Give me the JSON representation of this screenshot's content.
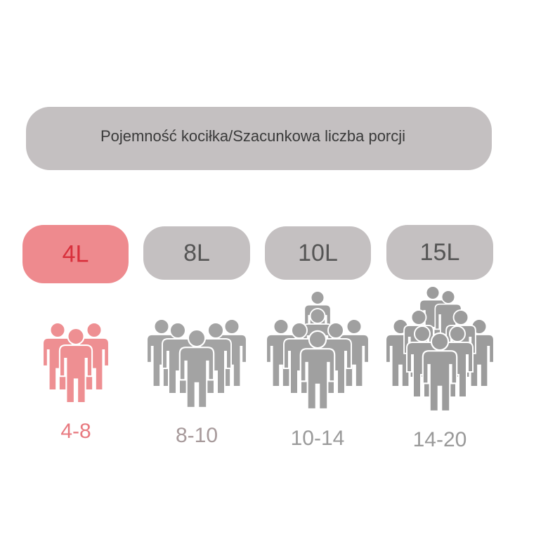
{
  "header": {
    "title": "Pojemność kociłka/Szacunkowa liczba porcji"
  },
  "options": [
    {
      "size": "4L",
      "servings": "4-8"
    },
    {
      "size": "8L",
      "servings": "8-10"
    },
    {
      "size": "10L",
      "servings": "10-14"
    },
    {
      "size": "15L",
      "servings": "14-20"
    }
  ]
}
